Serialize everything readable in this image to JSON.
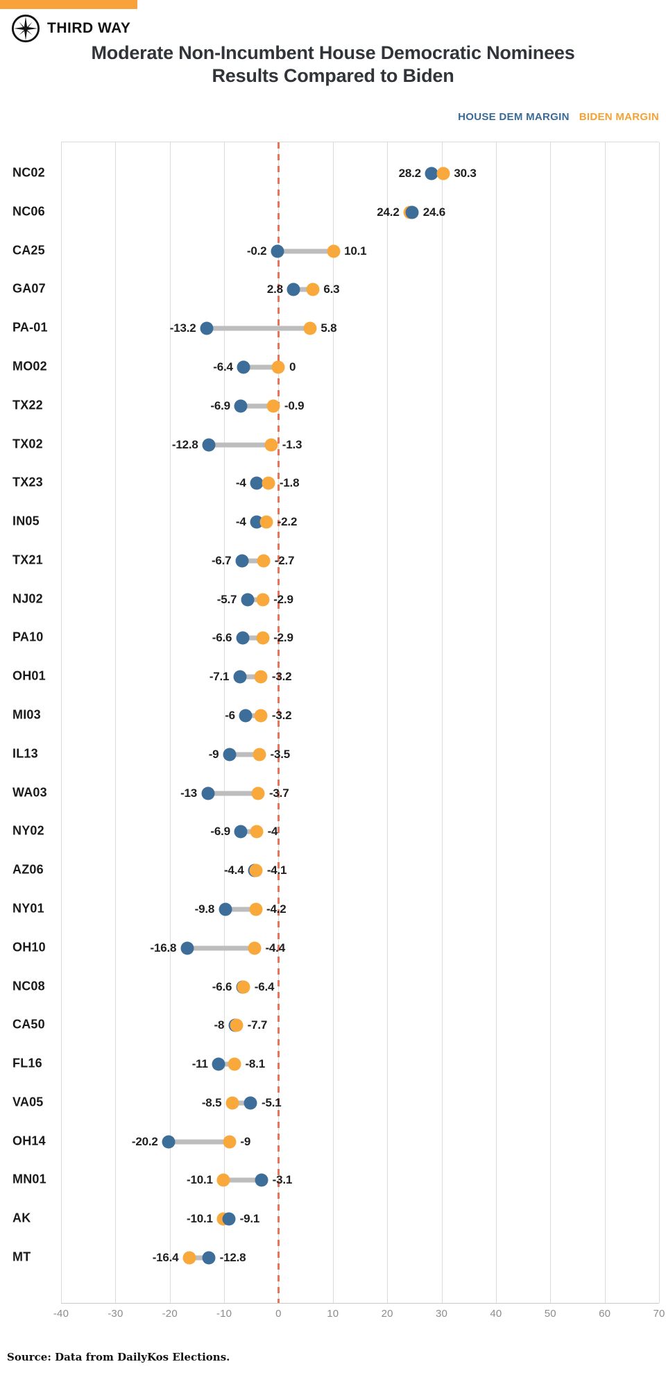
{
  "brand": {
    "name": "THIRD WAY",
    "accent_orange": "#F9A13B"
  },
  "title_line1": "Moderate Non-Incumbent House Democratic Nominees",
  "title_line2": "Results Compared to Biden",
  "source_note": "Source: Data from DailyKos Elections.",
  "icons": {
    "logo": "compass-star-icon"
  },
  "colors": {
    "house_dem_dot": "#3D6D99",
    "biden_dot": "#F9A83C",
    "legend_house_text": "#3A6B96",
    "legend_biden_text": "#F5A233",
    "zero_dashed_line": "#E8745B",
    "gridline": "#DBDBDB",
    "connector": "#BDBDBD",
    "tick_text": "#8C8C8C"
  },
  "chart_data": {
    "type": "scatter",
    "variant": "dumbbell",
    "title": "Moderate Non-Incumbent House Democratic Nominees Results Compared to Biden",
    "xlabel": "",
    "ylabel": "",
    "xlim": [
      -40,
      70
    ],
    "x_ticks": [
      -40,
      -30,
      -20,
      -10,
      0,
      10,
      20,
      30,
      40,
      50,
      60,
      70
    ],
    "zero_reference_line": 0,
    "grid": true,
    "legend_position": "top-right",
    "series": [
      {
        "name": "HOUSE DEM MARGIN",
        "color": "#3D6D99"
      },
      {
        "name": "BIDEN MARGIN",
        "color": "#F9A83C"
      }
    ],
    "rows": [
      {
        "district": "NC02",
        "house_dem": 28.2,
        "biden": 30.3,
        "house_label": "28.2",
        "biden_label": "30.3"
      },
      {
        "district": "NC06",
        "house_dem": 24.6,
        "biden": 24.2,
        "house_label": "24.6",
        "biden_label": "24.2"
      },
      {
        "district": "CA25",
        "house_dem": -0.2,
        "biden": 10.1,
        "house_label": "-0.2",
        "biden_label": "10.1"
      },
      {
        "district": "GA07",
        "house_dem": 2.8,
        "biden": 6.3,
        "house_label": "2.8",
        "biden_label": "6.3"
      },
      {
        "district": "PA-01",
        "house_dem": -13.2,
        "biden": 5.8,
        "house_label": "-13.2",
        "biden_label": "5.8"
      },
      {
        "district": "MO02",
        "house_dem": -6.4,
        "biden": 0,
        "house_label": "-6.4",
        "biden_label": "0"
      },
      {
        "district": "TX22",
        "house_dem": -6.9,
        "biden": -0.9,
        "house_label": "-6.9",
        "biden_label": "-0.9"
      },
      {
        "district": "TX02",
        "house_dem": -12.8,
        "biden": -1.3,
        "house_label": "-12.8",
        "biden_label": "-1.3"
      },
      {
        "district": "TX23",
        "house_dem": -4,
        "biden": -1.8,
        "house_label": "-4",
        "biden_label": "-1.8"
      },
      {
        "district": "IN05",
        "house_dem": -4,
        "biden": -2.2,
        "house_label": "-4",
        "biden_label": "-2.2"
      },
      {
        "district": "TX21",
        "house_dem": -6.7,
        "biden": -2.7,
        "house_label": "-6.7",
        "biden_label": "-2.7"
      },
      {
        "district": "NJ02",
        "house_dem": -5.7,
        "biden": -2.9,
        "house_label": "-5.7",
        "biden_label": "-2.9"
      },
      {
        "district": "PA10",
        "house_dem": -6.6,
        "biden": -2.9,
        "house_label": "-6.6",
        "biden_label": "-2.9"
      },
      {
        "district": "OH01",
        "house_dem": -7.1,
        "biden": -3.2,
        "house_label": "-7.1",
        "biden_label": "-3.2"
      },
      {
        "district": "MI03",
        "house_dem": -6,
        "biden": -3.2,
        "house_label": "-6",
        "biden_label": "-3.2"
      },
      {
        "district": "IL13",
        "house_dem": -9,
        "biden": -3.5,
        "house_label": "-9",
        "biden_label": "-3.5"
      },
      {
        "district": "WA03",
        "house_dem": -13,
        "biden": -3.7,
        "house_label": "-13",
        "biden_label": "-3.7"
      },
      {
        "district": "NY02",
        "house_dem": -6.9,
        "biden": -4,
        "house_label": "-6.9",
        "biden_label": "-4"
      },
      {
        "district": "AZ06",
        "house_dem": -4.4,
        "biden": -4.1,
        "house_label": "-4.4",
        "biden_label": "-4.1"
      },
      {
        "district": "NY01",
        "house_dem": -9.8,
        "biden": -4.2,
        "house_label": "-9.8",
        "biden_label": "-4.2"
      },
      {
        "district": "OH10",
        "house_dem": -16.8,
        "biden": -4.4,
        "house_label": "-16.8",
        "biden_label": "-4.4"
      },
      {
        "district": "NC08",
        "house_dem": -6.6,
        "biden": -6.4,
        "house_label": "-6.6",
        "biden_label": "-6.4"
      },
      {
        "district": "CA50",
        "house_dem": -8,
        "biden": -7.7,
        "house_label": "-8",
        "biden_label": "-7.7"
      },
      {
        "district": "FL16",
        "house_dem": -11,
        "biden": -8.1,
        "house_label": "-11",
        "biden_label": "-8.1"
      },
      {
        "district": "VA05",
        "house_dem": -5.1,
        "biden": -8.5,
        "house_label": "-5.1",
        "biden_label": "-8.5"
      },
      {
        "district": "OH14",
        "house_dem": -20.2,
        "biden": -9,
        "house_label": "-20.2",
        "biden_label": "-9"
      },
      {
        "district": "MN01",
        "house_dem": -3.1,
        "biden": -10.1,
        "house_label": "-3.1",
        "biden_label": "-10.1"
      },
      {
        "district": "AK",
        "house_dem": -9.1,
        "biden": -10.1,
        "house_label": "-9.1",
        "biden_label": "-10.1"
      },
      {
        "district": "MT",
        "house_dem": -12.8,
        "biden": -16.4,
        "house_label": "-12.8",
        "biden_label": "-16.4"
      }
    ]
  }
}
